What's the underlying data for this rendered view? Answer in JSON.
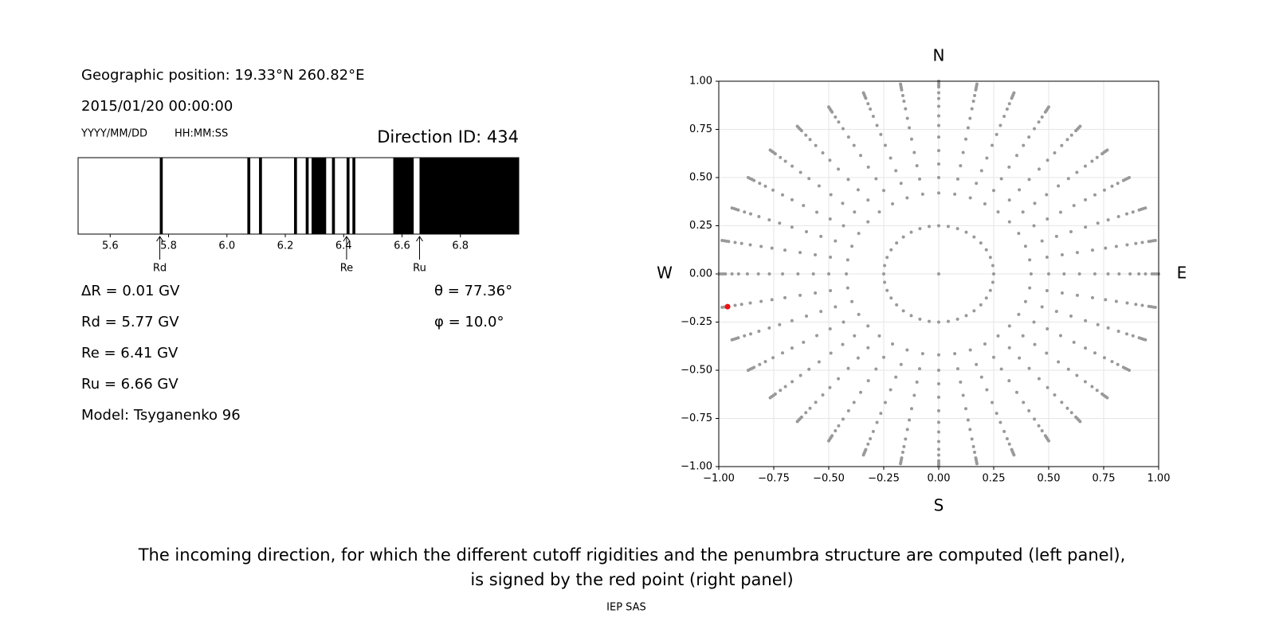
{
  "info": {
    "position": "Geographic position: 19.33°N 260.82°E",
    "datetime": "2015/01/20 00:00:00",
    "date_format": "YYYY/MM/DD",
    "time_format": "HH:MM:SS",
    "direction_id": "Direction ID: 434",
    "lines": [
      "ΔR = 0.01 GV",
      "Rd = 5.77 GV",
      "Re = 6.41 GV",
      "Ru = 6.66 GV",
      "Model: Tsyganenko 96"
    ],
    "angles": [
      "θ = 77.36°",
      "φ = 10.0°"
    ]
  },
  "chart_data": [
    {
      "type": "penumbra",
      "xlim": [
        5.49,
        7.0
      ],
      "xticks": [
        5.6,
        5.8,
        {
          "value": 6,
          "label": "6.0"
        },
        6.2,
        6.4,
        6.6,
        6.8
      ],
      "color": "#000000",
      "bands": [
        [
          5.77,
          5.78
        ],
        [
          6.07,
          6.08
        ],
        [
          6.11,
          6.12
        ],
        [
          6.23,
          6.24
        ],
        [
          6.27,
          6.28
        ],
        [
          6.29,
          6.34
        ],
        [
          6.36,
          6.37
        ],
        [
          6.41,
          6.42
        ],
        [
          6.43,
          6.44
        ],
        [
          6.57,
          6.64
        ],
        [
          6.66,
          7.0
        ]
      ],
      "markers": [
        {
          "label": "Rd",
          "value": 5.77
        },
        {
          "label": "Re",
          "value": 6.41
        },
        {
          "label": "Ru",
          "value": 6.66
        }
      ]
    },
    {
      "type": "scatter",
      "xlim": [
        -1,
        1
      ],
      "ylim": [
        -1,
        1
      ],
      "grid": true,
      "xticks": [
        {
          "value": -1,
          "label": "−1.00"
        },
        {
          "value": -0.75,
          "label": "−0.75"
        },
        {
          "value": -0.5,
          "label": "−0.50"
        },
        {
          "value": -0.25,
          "label": "−0.25"
        },
        {
          "value": 0,
          "label": "0.00"
        },
        {
          "value": 0.25,
          "label": "0.25"
        },
        {
          "value": 0.5,
          "label": "0.50"
        },
        {
          "value": 0.75,
          "label": "0.75"
        },
        {
          "value": 1,
          "label": "1.00"
        }
      ],
      "yticks": [
        {
          "value": -1,
          "label": "−1.00"
        },
        {
          "value": -0.75,
          "label": "−0.75"
        },
        {
          "value": -0.5,
          "label": "−0.50"
        },
        {
          "value": -0.25,
          "label": "−0.25"
        },
        {
          "value": 0,
          "label": "0.00"
        },
        {
          "value": 0.25,
          "label": "0.25"
        },
        {
          "value": 0.5,
          "label": "0.50"
        },
        {
          "value": 0.75,
          "label": "0.75"
        },
        {
          "value": 1,
          "label": "1.00"
        }
      ],
      "compass": {
        "north": "N",
        "south": "S",
        "west": "W",
        "east": "E"
      },
      "color": "#999999",
      "azimuths": [
        0,
        10,
        20,
        30,
        40,
        50,
        60,
        70,
        80,
        90,
        100,
        110,
        120,
        130,
        140,
        150,
        160,
        170,
        180,
        190,
        200,
        210,
        220,
        230,
        240,
        250,
        260,
        270,
        280,
        290,
        300,
        310,
        320,
        330,
        340,
        350
      ],
      "radii": [
        0.25,
        0.42,
        0.5,
        0.57,
        0.64,
        0.71,
        0.77,
        0.82,
        0.87,
        0.91,
        0.94,
        0.97,
        0.98,
        0.99,
        1.0
      ],
      "center": {
        "x": 0,
        "y": 0
      },
      "highlight": {
        "x": -0.96,
        "y": -0.17,
        "color": "#ee1111"
      }
    }
  ],
  "caption": [
    "The incoming direction, for which the different cutoff rigidities and the penumbra structure are computed (left panel),",
    "is signed by the red point (right panel)"
  ],
  "footer": "IEP SAS"
}
